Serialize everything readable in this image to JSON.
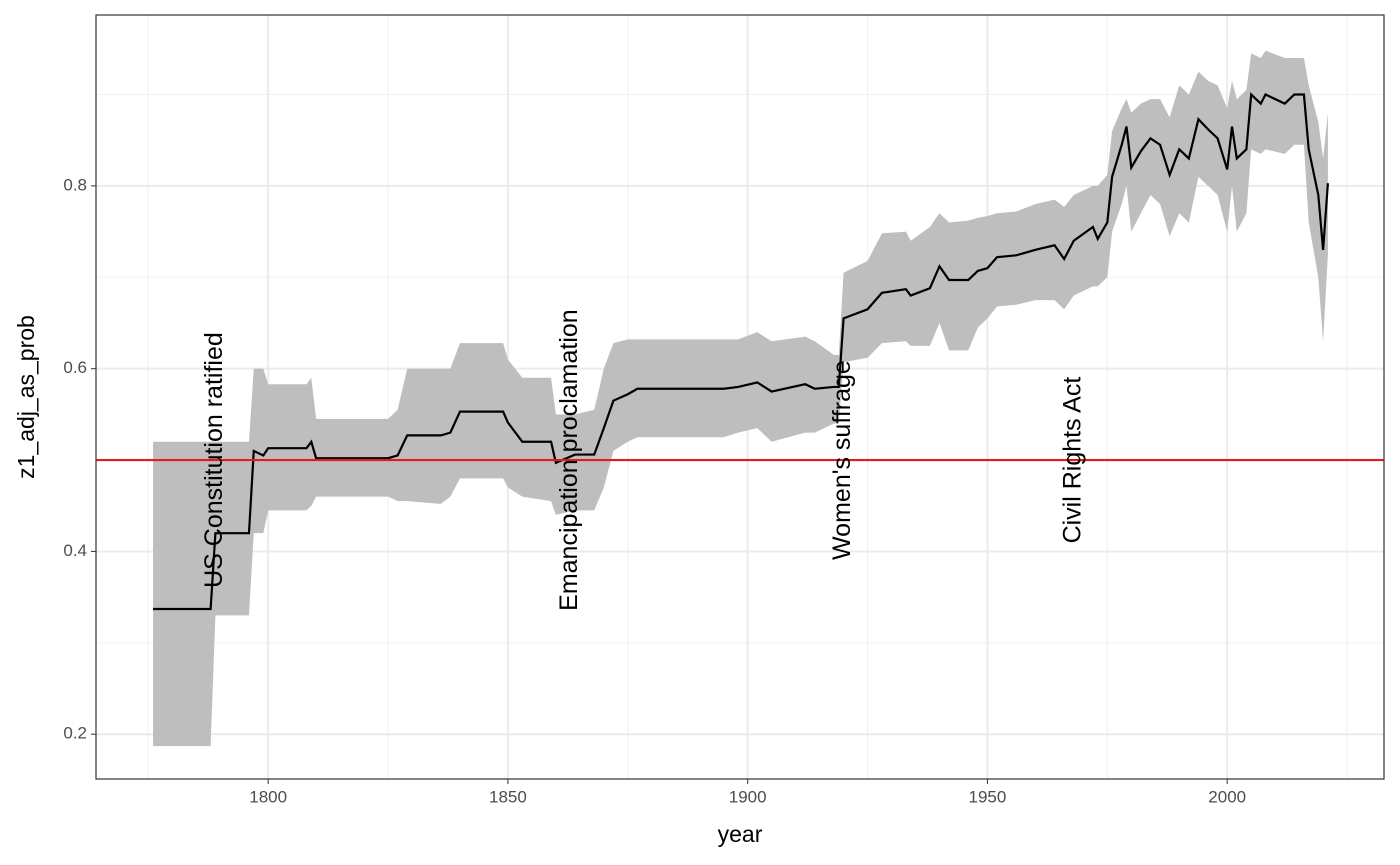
{
  "chart_data": {
    "type": "line",
    "xlabel": "year",
    "ylabel": "z1_adj_as_prob",
    "xlim": [
      1764.1,
      2032.7
    ],
    "ylim": [
      0.151,
      0.987
    ],
    "xticks": [
      1800,
      1850,
      1900,
      1950,
      2000
    ],
    "yticks": [
      0.2,
      0.4,
      0.6,
      0.8
    ],
    "xminor": [
      1775,
      1825,
      1875,
      1925,
      1975,
      2025
    ],
    "yminor": [
      0.3,
      0.5,
      0.7,
      0.9
    ],
    "grid": true,
    "hline": {
      "value": 0.5,
      "color": "#e41a1c"
    },
    "x": [
      1776,
      1788,
      1789,
      1796,
      1797,
      1799,
      1800,
      1808,
      1809,
      1810,
      1825,
      1827,
      1829,
      1836,
      1838,
      1840,
      1849,
      1850,
      1853,
      1859,
      1860,
      1864,
      1868,
      1870,
      1872,
      1875,
      1877,
      1895,
      1898,
      1902,
      1905,
      1912,
      1914,
      1918,
      1919,
      1920,
      1925,
      1928,
      1933,
      1934,
      1938,
      1940,
      1942,
      1946,
      1948,
      1950,
      1952,
      1956,
      1960,
      1964,
      1966,
      1968,
      1972,
      1973,
      1975,
      1976,
      1978,
      1979,
      1980,
      1982,
      1984,
      1986,
      1988,
      1990,
      1992,
      1994,
      1996,
      1998,
      2000,
      2001,
      2002,
      2004,
      2005,
      2007,
      2008,
      2012,
      2014,
      2016,
      2017,
      2019,
      2020,
      2021
    ],
    "series": [
      {
        "color": "#000000",
        "values": [
          0.337,
          0.337,
          0.42,
          0.42,
          0.51,
          0.505,
          0.513,
          0.513,
          0.52,
          0.502,
          0.502,
          0.505,
          0.527,
          0.527,
          0.53,
          0.553,
          0.553,
          0.541,
          0.52,
          0.52,
          0.497,
          0.506,
          0.506,
          0.535,
          0.565,
          0.572,
          0.578,
          0.578,
          0.58,
          0.585,
          0.575,
          0.583,
          0.578,
          0.58,
          0.58,
          0.655,
          0.665,
          0.683,
          0.687,
          0.68,
          0.688,
          0.712,
          0.697,
          0.697,
          0.707,
          0.71,
          0.722,
          0.724,
          0.73,
          0.735,
          0.72,
          0.74,
          0.755,
          0.742,
          0.76,
          0.81,
          0.845,
          0.865,
          0.82,
          0.838,
          0.852,
          0.845,
          0.812,
          0.84,
          0.83,
          0.873,
          0.862,
          0.852,
          0.818,
          0.865,
          0.83,
          0.84,
          0.9,
          0.89,
          0.9,
          0.89,
          0.9,
          0.9,
          0.84,
          0.79,
          0.73,
          0.803
        ]
      }
    ],
    "ribbon": {
      "color": "#bebebe",
      "lower": [
        0.187,
        0.187,
        0.33,
        0.33,
        0.42,
        0.42,
        0.445,
        0.445,
        0.45,
        0.46,
        0.46,
        0.455,
        0.455,
        0.452,
        0.46,
        0.48,
        0.48,
        0.47,
        0.46,
        0.455,
        0.44,
        0.445,
        0.445,
        0.47,
        0.51,
        0.52,
        0.525,
        0.525,
        0.53,
        0.535,
        0.52,
        0.53,
        0.53,
        0.54,
        0.54,
        0.607,
        0.612,
        0.628,
        0.63,
        0.625,
        0.625,
        0.65,
        0.62,
        0.62,
        0.645,
        0.655,
        0.668,
        0.67,
        0.675,
        0.675,
        0.665,
        0.68,
        0.69,
        0.69,
        0.7,
        0.75,
        0.78,
        0.8,
        0.75,
        0.77,
        0.79,
        0.78,
        0.745,
        0.77,
        0.76,
        0.81,
        0.8,
        0.79,
        0.75,
        0.8,
        0.75,
        0.77,
        0.84,
        0.835,
        0.84,
        0.835,
        0.845,
        0.845,
        0.76,
        0.7,
        0.63,
        0.725
      ],
      "upper": [
        0.52,
        0.52,
        0.52,
        0.52,
        0.6,
        0.6,
        0.583,
        0.583,
        0.59,
        0.545,
        0.545,
        0.555,
        0.6,
        0.6,
        0.6,
        0.628,
        0.628,
        0.61,
        0.59,
        0.59,
        0.55,
        0.55,
        0.555,
        0.6,
        0.628,
        0.632,
        0.632,
        0.632,
        0.632,
        0.64,
        0.63,
        0.635,
        0.63,
        0.615,
        0.615,
        0.705,
        0.718,
        0.748,
        0.75,
        0.74,
        0.755,
        0.77,
        0.76,
        0.762,
        0.765,
        0.767,
        0.77,
        0.772,
        0.78,
        0.785,
        0.777,
        0.79,
        0.8,
        0.8,
        0.812,
        0.86,
        0.885,
        0.895,
        0.88,
        0.89,
        0.895,
        0.895,
        0.875,
        0.91,
        0.9,
        0.925,
        0.915,
        0.91,
        0.885,
        0.915,
        0.895,
        0.905,
        0.945,
        0.94,
        0.948,
        0.94,
        0.94,
        0.94,
        0.91,
        0.87,
        0.83,
        0.88
      ]
    },
    "annotations": [
      {
        "text": "US Constitution ratified",
        "x": 1789,
        "y": 0.5
      },
      {
        "text": "Emancipation proclamation",
        "x": 1863,
        "y": 0.5
      },
      {
        "text": "Women's suffrage",
        "x": 1920,
        "y": 0.5
      },
      {
        "text": "Civil Rights Act",
        "x": 1968,
        "y": 0.5
      }
    ]
  }
}
